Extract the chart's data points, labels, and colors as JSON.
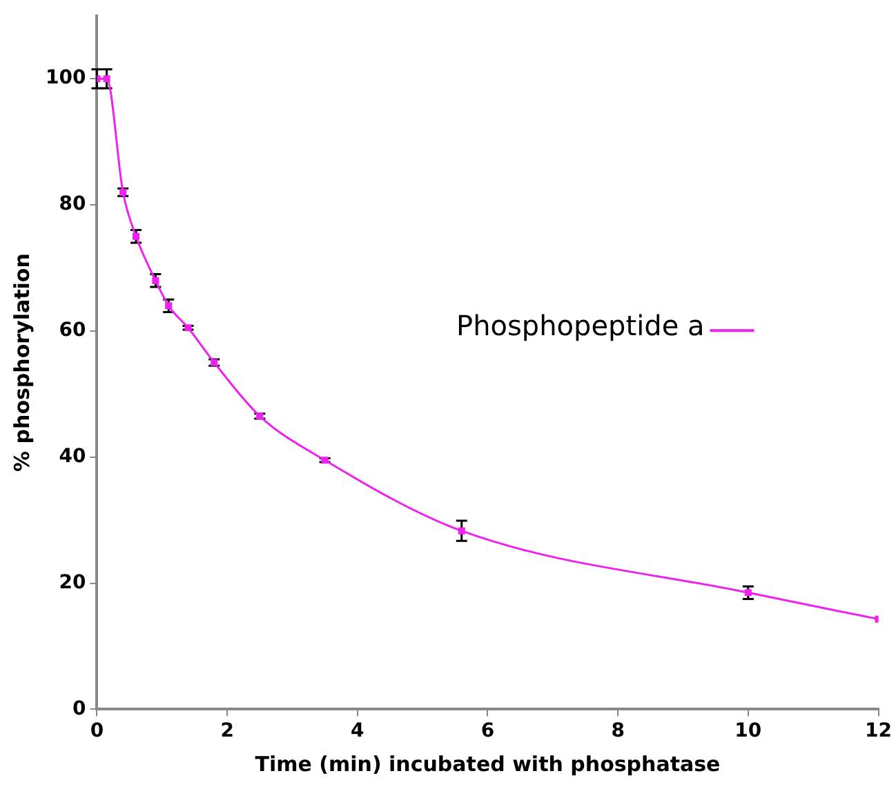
{
  "chart_data": {
    "type": "line",
    "xlabel": "Time (min) incubated with phosphatase",
    "ylabel": "% phosphorylation",
    "x": [
      0,
      0.15,
      0.4,
      0.6,
      0.9,
      1.1,
      1.4,
      1.8,
      2.5,
      3.5,
      5.6,
      10,
      12
    ],
    "series": [
      {
        "name": "Phosphopeptide a",
        "color": "#ee22ee",
        "values": [
          100,
          100,
          82,
          75,
          68,
          64,
          60.5,
          55,
          46.5,
          39.5,
          28.3,
          18.5,
          14.3
        ],
        "errors": [
          1.5,
          1.5,
          0.6,
          1,
          1,
          1,
          0.3,
          0.5,
          0.4,
          0.3,
          1.6,
          1,
          null
        ]
      }
    ],
    "xlim": [
      0,
      12
    ],
    "xticks": [
      0,
      2,
      4,
      6,
      8,
      10,
      12
    ],
    "ylim": [
      0,
      110
    ],
    "yticks": [
      0,
      20,
      40,
      60,
      80,
      100
    ],
    "grid": false,
    "legend": "right",
    "marker": "square",
    "line_style": "solid"
  }
}
